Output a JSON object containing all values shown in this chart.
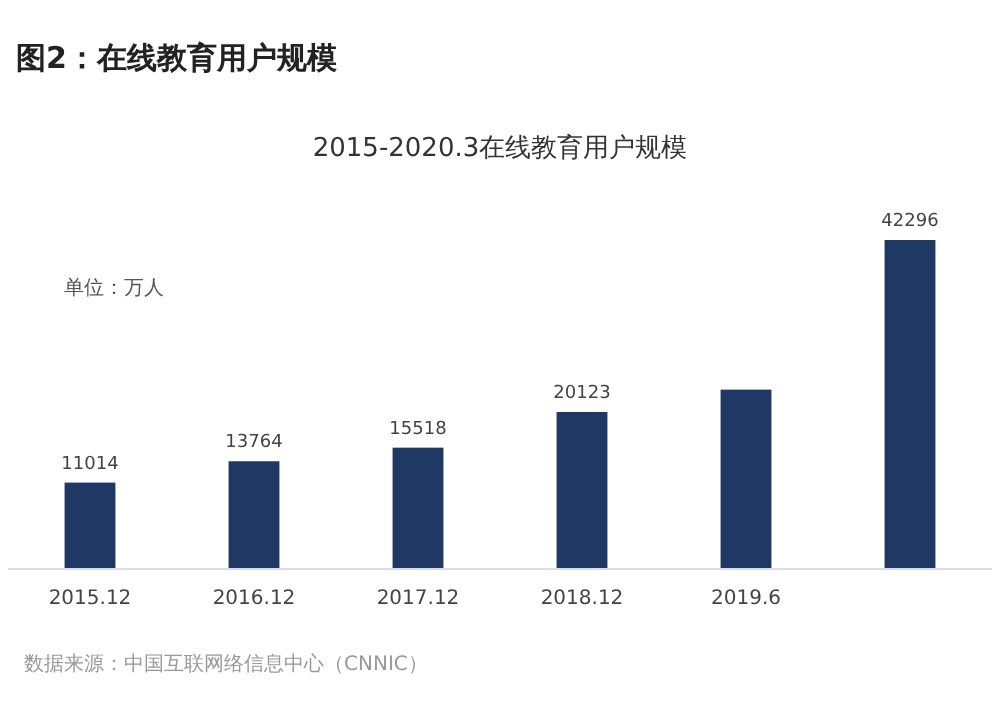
{
  "chart_data": {
    "type": "bar",
    "title": "图2：在线教育用户规模",
    "subtitle": "2015-2020.3在线教育用户规模",
    "categories": [
      "2015.12",
      "2016.12",
      "2017.12",
      "2018.12",
      "2019.6",
      null
    ],
    "values": [
      11014,
      13764,
      15518,
      20123,
      23000,
      42296
    ],
    "value_labels": [
      "11014",
      "13764",
      "15518",
      "20123",
      null,
      "42296"
    ],
    "color": "#1f3864",
    "annotations": [
      "单位：万人",
      "数据来源：中国互联网络信息中心（CNNIC）"
    ]
  }
}
